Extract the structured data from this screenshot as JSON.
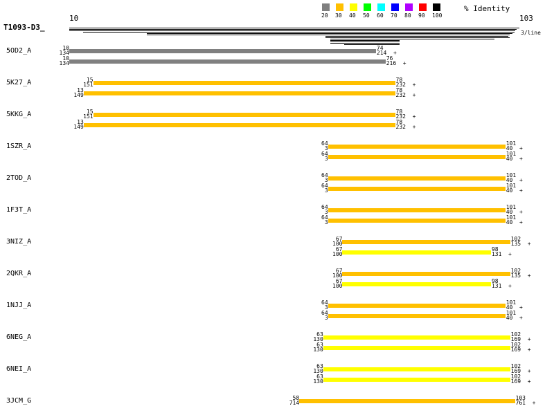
{
  "query": {
    "name": "T1093-D3_",
    "start": 10,
    "end": 103,
    "per_line_label": "3/line"
  },
  "legend": {
    "title": "% Identity",
    "items": [
      {
        "label": "20",
        "color": "#808080"
      },
      {
        "label": "30",
        "color": "#ffc000"
      },
      {
        "label": "40",
        "color": "#ffff00"
      },
      {
        "label": "50",
        "color": "#00ff00"
      },
      {
        "label": "60",
        "color": "#00ffff"
      },
      {
        "label": "70",
        "color": "#0000ff"
      },
      {
        "label": "80",
        "color": "#b000ff"
      },
      {
        "label": "90",
        "color": "#ff0000"
      },
      {
        "label": "100",
        "color": "#000000"
      }
    ]
  },
  "hits": [
    {
      "name": "5OD2_A",
      "alignments": [
        {
          "qs": "10",
          "ts": "134",
          "qe": "74",
          "te": "214 +",
          "color": "#808080"
        },
        {
          "qs": "10",
          "ts": "134",
          "qe": "76",
          "te": "216 +",
          "color": "#808080"
        }
      ]
    },
    {
      "name": "5K27_A",
      "alignments": [
        {
          "qs": "15",
          "ts": "151",
          "qe": "78",
          "te": "232 +",
          "color": "#ffc000"
        },
        {
          "qs": "13",
          "ts": "149",
          "qe": "78",
          "te": "232 +",
          "color": "#ffc000"
        }
      ]
    },
    {
      "name": "5KKG_A",
      "alignments": [
        {
          "qs": "15",
          "ts": "151",
          "qe": "78",
          "te": "232 +",
          "color": "#ffc000"
        },
        {
          "qs": "13",
          "ts": "149",
          "qe": "78",
          "te": "232 +",
          "color": "#ffc000"
        }
      ]
    },
    {
      "name": "1SZR_A",
      "alignments": [
        {
          "qs": "64",
          "ts": "3",
          "qe": "101",
          "te": "40 +",
          "color": "#ffc000"
        },
        {
          "qs": "64",
          "ts": "3",
          "qe": "101",
          "te": "40 +",
          "color": "#ffc000"
        }
      ]
    },
    {
      "name": "2TOD_A",
      "alignments": [
        {
          "qs": "64",
          "ts": "3",
          "qe": "101",
          "te": "40 +",
          "color": "#ffc000"
        },
        {
          "qs": "64",
          "ts": "3",
          "qe": "101",
          "te": "40 +",
          "color": "#ffc000"
        }
      ]
    },
    {
      "name": "1F3T_A",
      "alignments": [
        {
          "qs": "64",
          "ts": "3",
          "qe": "101",
          "te": "40 +",
          "color": "#ffc000"
        },
        {
          "qs": "64",
          "ts": "3",
          "qe": "101",
          "te": "40 +",
          "color": "#ffc000"
        }
      ]
    },
    {
      "name": "3NIZ_A",
      "alignments": [
        {
          "qs": "67",
          "ts": "100",
          "qe": "102",
          "te": "135 +",
          "color": "#ffc000"
        },
        {
          "qs": "67",
          "ts": "100",
          "qe": "98",
          "te": "131 +",
          "color": "#ffff00"
        }
      ]
    },
    {
      "name": "2QKR_A",
      "alignments": [
        {
          "qs": "67",
          "ts": "100",
          "qe": "102",
          "te": "135 +",
          "color": "#ffc000"
        },
        {
          "qs": "67",
          "ts": "100",
          "qe": "98",
          "te": "131 +",
          "color": "#ffff00"
        }
      ]
    },
    {
      "name": "1NJJ_A",
      "alignments": [
        {
          "qs": "64",
          "ts": "3",
          "qe": "101",
          "te": "40 +",
          "color": "#ffc000"
        },
        {
          "qs": "64",
          "ts": "3",
          "qe": "101",
          "te": "40 +",
          "color": "#ffc000"
        }
      ]
    },
    {
      "name": "6NEG_A",
      "alignments": [
        {
          "qs": "63",
          "ts": "130",
          "qe": "102",
          "te": "169 +",
          "color": "#ffff00"
        },
        {
          "qs": "63",
          "ts": "130",
          "qe": "102",
          "te": "169 +",
          "color": "#ffff00"
        }
      ]
    },
    {
      "name": "6NEI_A",
      "alignments": [
        {
          "qs": "63",
          "ts": "130",
          "qe": "102",
          "te": "169 +",
          "color": "#ffff00"
        },
        {
          "qs": "63",
          "ts": "130",
          "qe": "102",
          "te": "169 +",
          "color": "#ffff00"
        }
      ]
    },
    {
      "name": "3JCM_G",
      "alignments": [
        {
          "qs": "58",
          "ts": "714",
          "qe": "103",
          "te": "761 +",
          "color": "#ffc000"
        }
      ]
    }
  ]
}
